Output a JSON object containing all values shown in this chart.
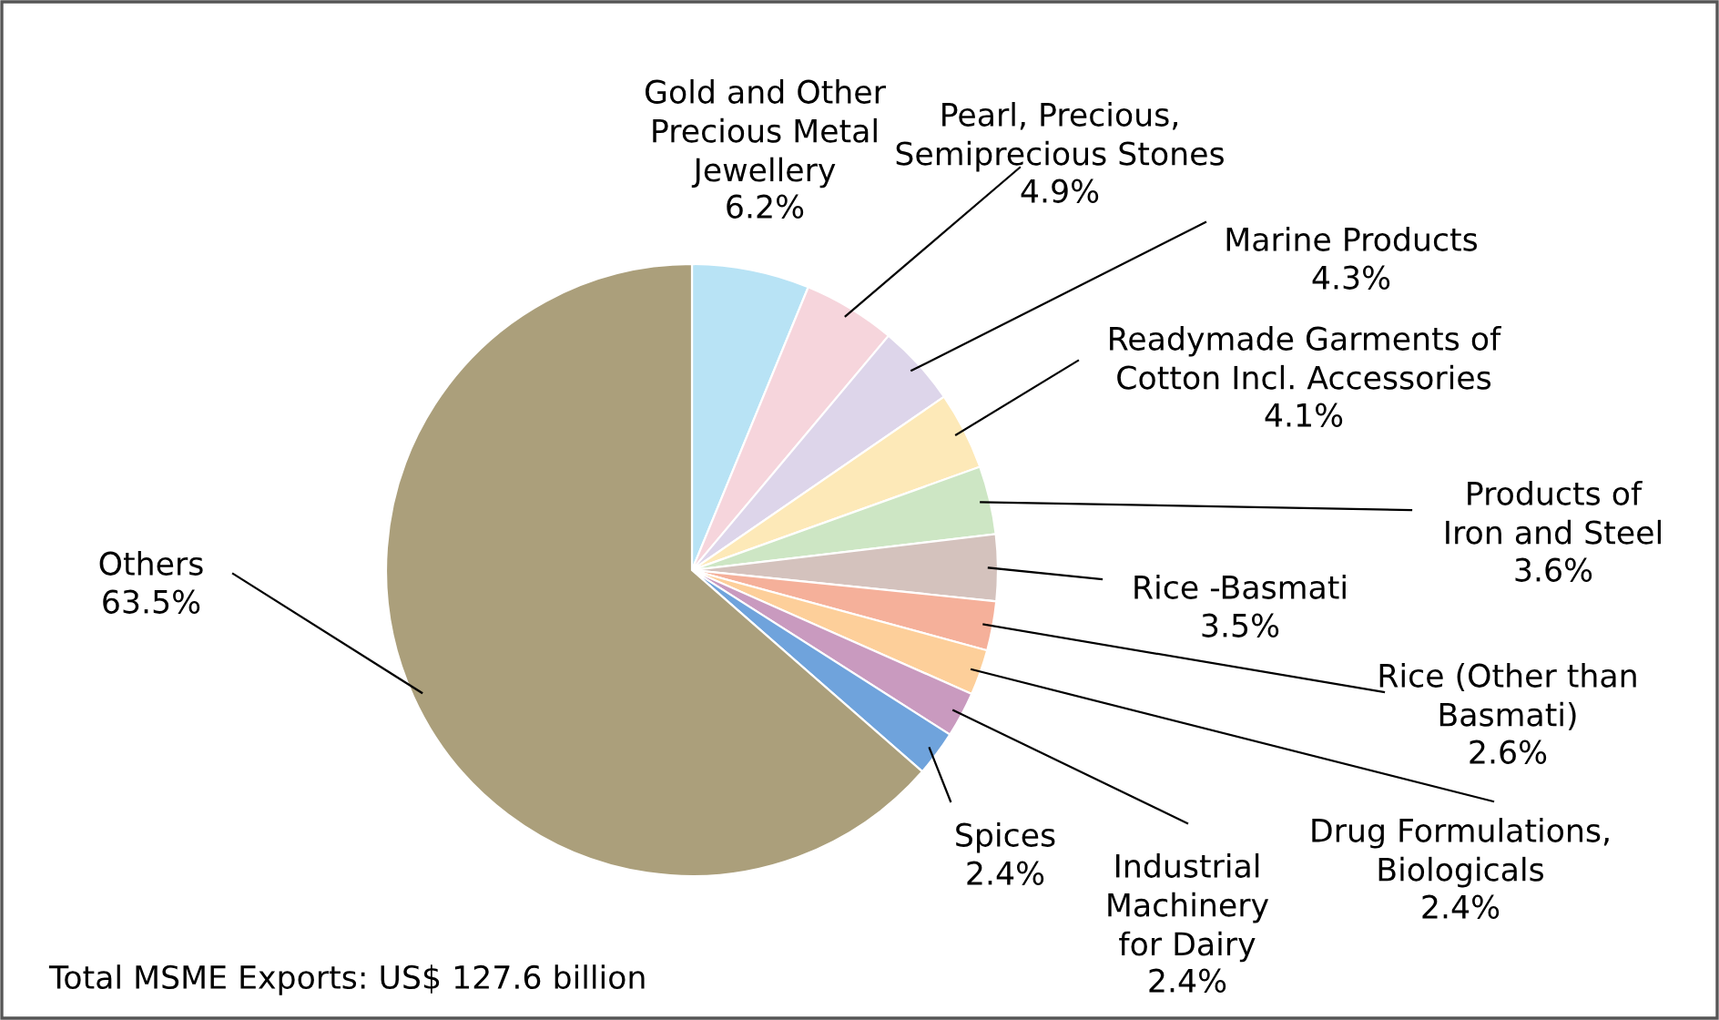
{
  "chart_data": {
    "type": "pie",
    "categories": [
      "Gold and Other\nPrecious Metal\nJewellery",
      "Pearl, Precious,\nSemiprecious Stones",
      "Marine Products",
      "Readymade Garments of\nCotton Incl. Accessories",
      "Products of\nIron and Steel",
      "Rice -Basmati",
      "Rice (Other than\nBasmati)",
      "Drug Formulations,\nBiologicals",
      "Industrial\nMachinery\nfor Dairy",
      "Spices",
      "Others"
    ],
    "values": [
      6.2,
      4.9,
      4.3,
      4.1,
      3.6,
      3.5,
      2.6,
      2.4,
      2.4,
      2.4,
      63.5
    ],
    "colors": [
      "#b8e3f5",
      "#f6d5dc",
      "#ddd5ea",
      "#fde9b8",
      "#cde6c4",
      "#d4c2bd",
      "#f5b09a",
      "#fdcf9a",
      "#c99abf",
      "#6fa3dc",
      "#ab9f7b"
    ],
    "value_labels": [
      "6.2%",
      "4.9%",
      "4.3%",
      "4.1%",
      "3.6%",
      "3.5%",
      "2.6%",
      "2.4%",
      "2.4%",
      "2.4%",
      "63.5%"
    ],
    "annotations": [
      "Total MSME Exports: US$ 127.6 billion"
    ]
  }
}
